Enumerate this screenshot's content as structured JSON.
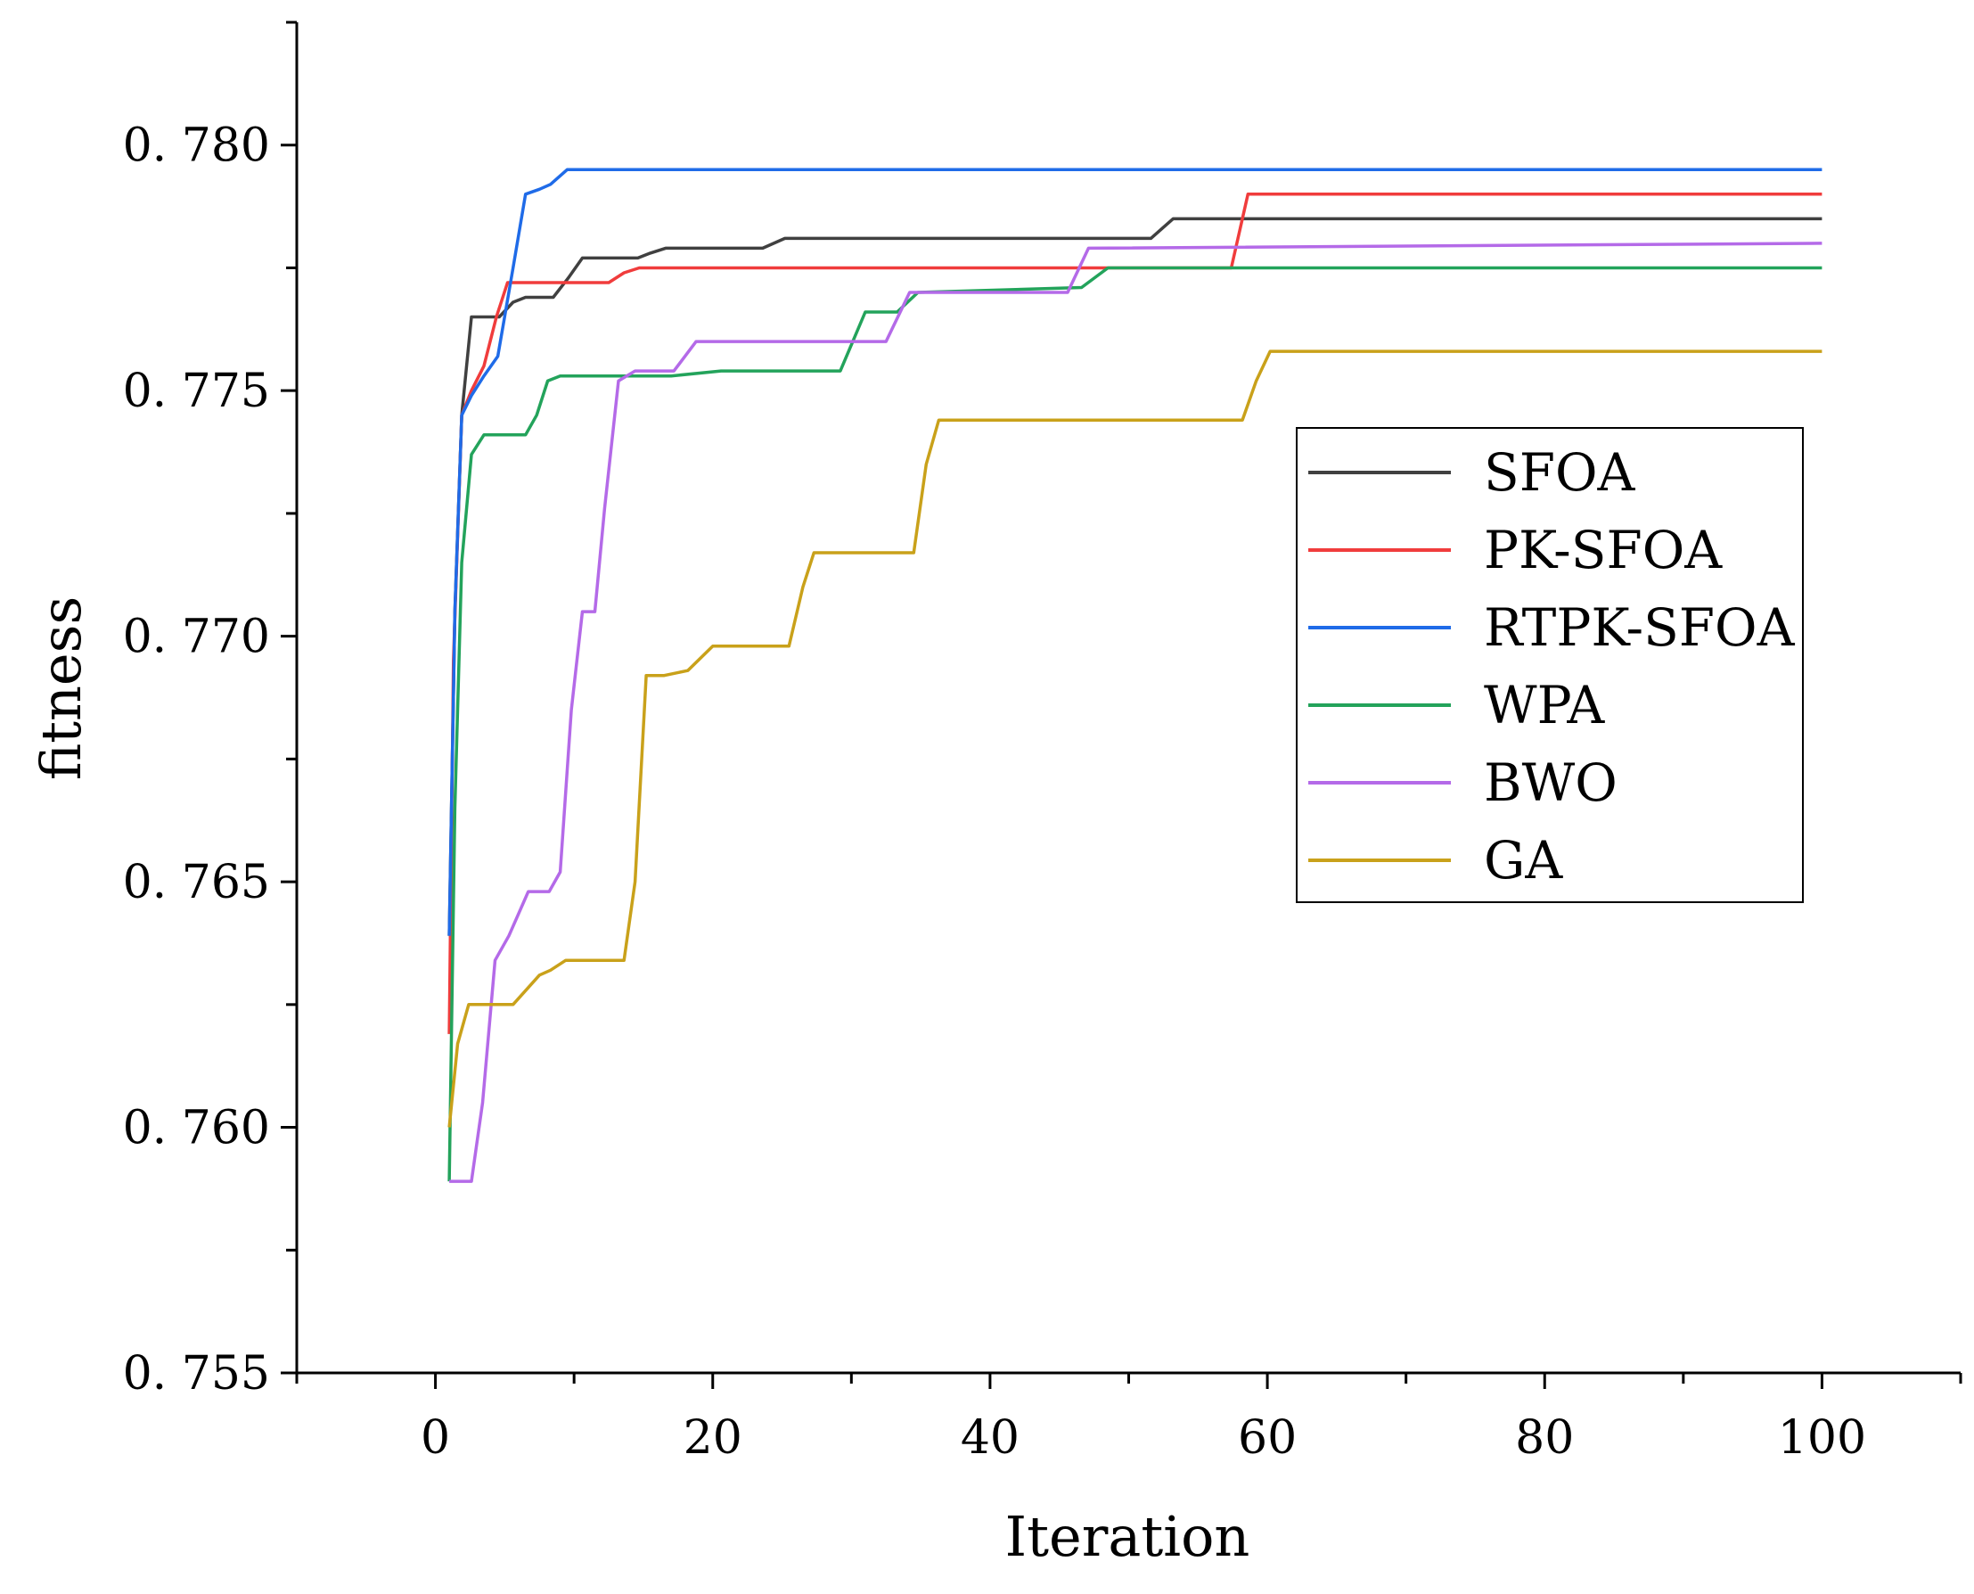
{
  "chart_data": {
    "type": "line",
    "title": "",
    "xlabel": "Iteration",
    "ylabel": "fitness",
    "xlim": [
      -10,
      110
    ],
    "ylim": [
      0.755,
      0.7825
    ],
    "xticks": [
      0,
      20,
      40,
      60,
      80,
      100
    ],
    "xtick_labels": [
      "0",
      "20",
      "40",
      "60",
      "80",
      "100"
    ],
    "yticks": [
      0.755,
      0.76,
      0.765,
      0.77,
      0.775,
      0.78
    ],
    "ytick_labels": [
      "0. 755",
      "0. 760",
      "0. 765",
      "0. 770",
      "0. 775",
      "0. 780"
    ],
    "grid": false,
    "legend_position": "center-right",
    "series": [
      {
        "name": "SFOA",
        "color": "#404040",
        "points": [
          [
            1,
            0.7639
          ],
          [
            1.4,
            0.7705
          ],
          [
            1.9,
            0.7745
          ],
          [
            2.6,
            0.7765
          ],
          [
            3.5,
            0.7765
          ],
          [
            4.6,
            0.7765
          ],
          [
            5.6,
            0.7768
          ],
          [
            6.5,
            0.7769
          ],
          [
            8.5,
            0.7769
          ],
          [
            9.6,
            0.7773
          ],
          [
            10.6,
            0.7777
          ],
          [
            14.6,
            0.7777
          ],
          [
            15.5,
            0.7778
          ],
          [
            16.6,
            0.7779
          ],
          [
            23.6,
            0.7779
          ],
          [
            25.2,
            0.7781
          ],
          [
            51.6,
            0.7781
          ],
          [
            53.2,
            0.7785
          ],
          [
            100,
            0.7785
          ]
        ]
      },
      {
        "name": "PK-SFOA",
        "color": "#f03c3c",
        "points": [
          [
            1,
            0.7619
          ],
          [
            1.3,
            0.7695
          ],
          [
            1.9,
            0.7745
          ],
          [
            2.6,
            0.775
          ],
          [
            3.5,
            0.7755
          ],
          [
            4.4,
            0.7765
          ],
          [
            5.2,
            0.7772
          ],
          [
            6.5,
            0.7772
          ],
          [
            12.5,
            0.7772
          ],
          [
            13.6,
            0.7774
          ],
          [
            14.7,
            0.7775
          ],
          [
            55.6,
            0.7775
          ],
          [
            57.4,
            0.7775
          ],
          [
            58.6,
            0.779
          ],
          [
            100,
            0.779
          ]
        ]
      },
      {
        "name": "RTPK-SFOA",
        "color": "#1f6be8",
        "points": [
          [
            1,
            0.7639
          ],
          [
            1.4,
            0.7705
          ],
          [
            1.9,
            0.7745
          ],
          [
            2.6,
            0.7749
          ],
          [
            3.5,
            0.7753
          ],
          [
            4.5,
            0.7757
          ],
          [
            5.6,
            0.7775
          ],
          [
            6.5,
            0.779
          ],
          [
            7.5,
            0.7791
          ],
          [
            8.3,
            0.7792
          ],
          [
            9.5,
            0.7795
          ],
          [
            100,
            0.7795
          ]
        ]
      },
      {
        "name": "WPA",
        "color": "#23a35b",
        "points": [
          [
            1,
            0.7589
          ],
          [
            1.4,
            0.7665
          ],
          [
            1.9,
            0.7715
          ],
          [
            2.6,
            0.7737
          ],
          [
            3.5,
            0.7741
          ],
          [
            6.5,
            0.7741
          ],
          [
            7.3,
            0.7745
          ],
          [
            8.1,
            0.7752
          ],
          [
            9,
            0.7753
          ],
          [
            17,
            0.7753
          ],
          [
            20.6,
            0.7754
          ],
          [
            29.2,
            0.7754
          ],
          [
            31,
            0.7766
          ],
          [
            33.3,
            0.7766
          ],
          [
            34.8,
            0.777
          ],
          [
            46.6,
            0.7771
          ],
          [
            48.5,
            0.7775
          ],
          [
            100,
            0.7775
          ]
        ]
      },
      {
        "name": "BWO",
        "color": "#b46ae8",
        "points": [
          [
            1,
            0.7589
          ],
          [
            2.6,
            0.7589
          ],
          [
            3.4,
            0.7605
          ],
          [
            4.3,
            0.7634
          ],
          [
            5.3,
            0.7639
          ],
          [
            6.7,
            0.7648
          ],
          [
            8.2,
            0.7648
          ],
          [
            9,
            0.7652
          ],
          [
            9.8,
            0.7685
          ],
          [
            10.6,
            0.7705
          ],
          [
            11.5,
            0.7705
          ],
          [
            12.2,
            0.7726
          ],
          [
            13.2,
            0.7752
          ],
          [
            14.4,
            0.7754
          ],
          [
            17.2,
            0.7754
          ],
          [
            18.8,
            0.776
          ],
          [
            32.5,
            0.776
          ],
          [
            34.2,
            0.777
          ],
          [
            45.6,
            0.777
          ],
          [
            47.1,
            0.7779
          ],
          [
            100,
            0.778
          ]
        ]
      },
      {
        "name": "GA",
        "color": "#c9a11a",
        "points": [
          [
            1,
            0.76
          ],
          [
            1.6,
            0.7617
          ],
          [
            2.4,
            0.7625
          ],
          [
            5.6,
            0.7625
          ],
          [
            7.5,
            0.7631
          ],
          [
            8.3,
            0.7632
          ],
          [
            9.4,
            0.7634
          ],
          [
            13.6,
            0.7634
          ],
          [
            14.4,
            0.765
          ],
          [
            15.2,
            0.7692
          ],
          [
            16.5,
            0.7692
          ],
          [
            18.2,
            0.7693
          ],
          [
            20,
            0.7698
          ],
          [
            25.5,
            0.7698
          ],
          [
            26.5,
            0.771
          ],
          [
            27.3,
            0.7717
          ],
          [
            34.5,
            0.7717
          ],
          [
            35.4,
            0.7735
          ],
          [
            36.3,
            0.7744
          ],
          [
            58.2,
            0.7744
          ],
          [
            59.2,
            0.7752
          ],
          [
            60.2,
            0.7758
          ],
          [
            100,
            0.7758
          ]
        ]
      }
    ]
  }
}
